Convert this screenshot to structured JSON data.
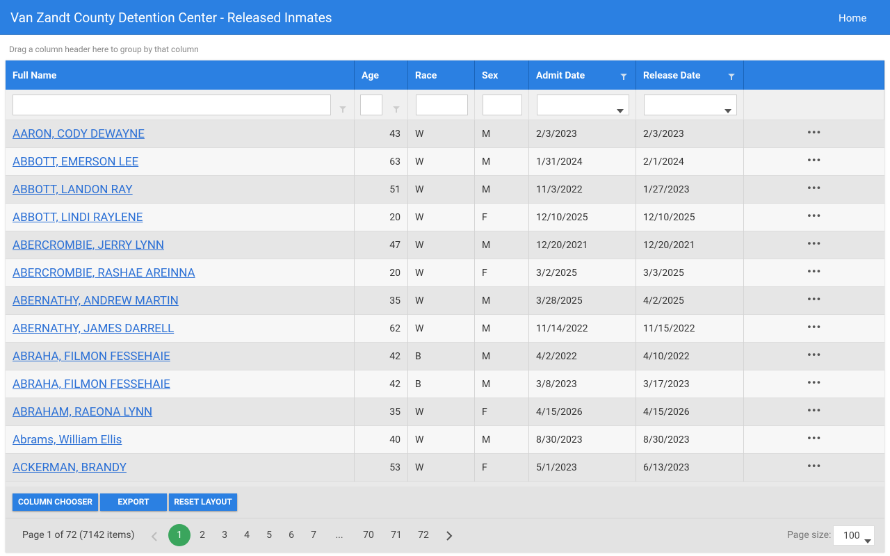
{
  "header": {
    "title": "Van Zandt County Detention Center - Released Inmates",
    "nav": "Home"
  },
  "group_panel": "Drag a column header here to group by that column",
  "table": {
    "columns": [
      "Full Name",
      "Age",
      "Race",
      "Sex",
      "Admit Date",
      "Release Date"
    ],
    "rows": [
      [
        "AARON, CODY DEWAYNE",
        43,
        "W",
        "M",
        "2/3/2023",
        "2/3/2023"
      ],
      [
        "ABBOTT, EMERSON LEE",
        63,
        "W",
        "M",
        "1/31/2024",
        "2/1/2024"
      ],
      [
        "ABBOTT, LANDON RAY",
        51,
        "W",
        "M",
        "11/3/2022",
        "1/27/2023"
      ],
      [
        "ABBOTT, LINDI RAYLENE",
        20,
        "W",
        "F",
        "12/10/2025",
        "12/10/2025"
      ],
      [
        "ABERCROMBIE, JERRY LYNN",
        47,
        "W",
        "M",
        "12/20/2021",
        "12/20/2021"
      ],
      [
        "ABERCROMBIE, RASHAE AREINNA",
        20,
        "W",
        "F",
        "3/2/2025",
        "3/3/2025"
      ],
      [
        "ABERNATHY, ANDREW MARTIN",
        35,
        "W",
        "M",
        "3/28/2025",
        "4/2/2025"
      ],
      [
        "ABERNATHY, JAMES DARRELL",
        62,
        "W",
        "M",
        "11/14/2022",
        "11/15/2022"
      ],
      [
        "ABRAHA, FILMON FESSEHAIE",
        42,
        "B",
        "M",
        "4/2/2022",
        "4/10/2022"
      ],
      [
        "ABRAHA, FILMON FESSEHAIE",
        42,
        "B",
        "M",
        "3/8/2023",
        "3/17/2023"
      ],
      [
        "ABRAHAM, RAEONA LYNN",
        35,
        "W",
        "F",
        "4/15/2026",
        "4/15/2026"
      ],
      [
        "Abrams, William Ellis",
        40,
        "W",
        "M",
        "8/30/2023",
        "8/30/2023"
      ],
      [
        "ACKERMAN, BRANDY",
        53,
        "W",
        "F",
        "5/1/2023",
        "6/13/2023"
      ]
    ]
  },
  "toolbar": {
    "buttons": [
      "COLUMN CHOOSER",
      "EXPORT",
      "RESET LAYOUT"
    ]
  },
  "pager": {
    "info": "Page 1 of 72 (7142 items)",
    "pages": [
      1,
      2,
      3,
      4,
      5,
      6,
      7,
      "...",
      70,
      71,
      72
    ],
    "page_size_label": "Page size:",
    "page_size": 100
  }
}
